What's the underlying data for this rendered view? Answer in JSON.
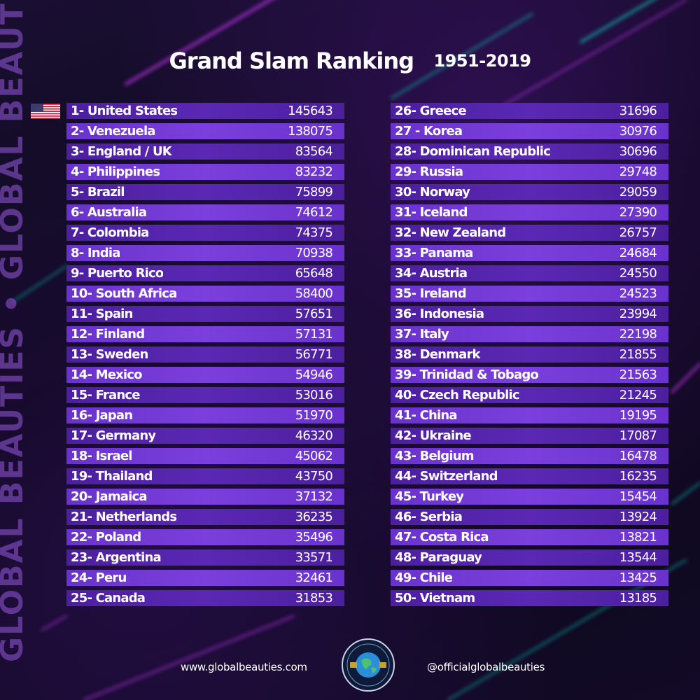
{
  "title": "Grand Slam Ranking",
  "years": "1951-2019",
  "side_text": "GLOBAL BEAUTIES • GLOBAL BEAUTIES",
  "footer": {
    "website": "www.globalbeauties.com",
    "instagram": "@officialglobalbeauties"
  },
  "logo_text": "GLOBAL BEAUTIES",
  "colors": {
    "row_dark": "#4c1f9e",
    "row_light": "#6a32cc",
    "background": "#0a0714",
    "neon_pink": "#d23cff",
    "neon_teal": "#19d9c8"
  },
  "flag_icon": "us-flag-icon",
  "rankings": [
    {
      "label": "1- United States",
      "score": "145643"
    },
    {
      "label": "2- Venezuela",
      "score": "138075"
    },
    {
      "label": "3- England / UK",
      "score": "83564"
    },
    {
      "label": "4- Philippines",
      "score": "83232"
    },
    {
      "label": "5- Brazil",
      "score": "75899"
    },
    {
      "label": "6- Australia",
      "score": "74612"
    },
    {
      "label": "7- Colombia",
      "score": "74375"
    },
    {
      "label": "8- India",
      "score": "70938"
    },
    {
      "label": "9- Puerto Rico",
      "score": "65648"
    },
    {
      "label": "10- South Africa",
      "score": "58400"
    },
    {
      "label": "11- Spain",
      "score": "57651"
    },
    {
      "label": "12- Finland",
      "score": "57131"
    },
    {
      "label": "13- Sweden",
      "score": "56771"
    },
    {
      "label": "14- Mexico",
      "score": "54946"
    },
    {
      "label": "15- France",
      "score": "53016"
    },
    {
      "label": "16- Japan",
      "score": "51970"
    },
    {
      "label": "17- Germany",
      "score": "46320"
    },
    {
      "label": "18- Israel",
      "score": "45062"
    },
    {
      "label": "19- Thailand",
      "score": "43750"
    },
    {
      "label": "20- Jamaica",
      "score": "37132"
    },
    {
      "label": "21- Netherlands",
      "score": "36235"
    },
    {
      "label": "22- Poland",
      "score": "35496"
    },
    {
      "label": "23- Argentina",
      "score": "33571"
    },
    {
      "label": "24- Peru",
      "score": "32461"
    },
    {
      "label": "25- Canada",
      "score": "31853"
    },
    {
      "label": "26- Greece",
      "score": "31696"
    },
    {
      "label": "27 - Korea",
      "score": "30976"
    },
    {
      "label": "28- Dominican Republic",
      "score": "30696"
    },
    {
      "label": "29- Russia",
      "score": "29748"
    },
    {
      "label": "30- Norway",
      "score": "29059"
    },
    {
      "label": "31- Iceland",
      "score": "27390"
    },
    {
      "label": "32- New Zealand",
      "score": "26757"
    },
    {
      "label": "33- Panama",
      "score": "24684"
    },
    {
      "label": "34- Austria",
      "score": "24550"
    },
    {
      "label": "35- Ireland",
      "score": "24523"
    },
    {
      "label": "36- Indonesia",
      "score": "23994"
    },
    {
      "label": "37- Italy",
      "score": "22198"
    },
    {
      "label": "38- Denmark",
      "score": "21855"
    },
    {
      "label": "39- Trinidad & Tobago",
      "score": "21563"
    },
    {
      "label": "40- Czech Republic",
      "score": "21245"
    },
    {
      "label": "41- China",
      "score": "19195"
    },
    {
      "label": "42- Ukraine",
      "score": "17087"
    },
    {
      "label": "43- Belgium",
      "score": "16478"
    },
    {
      "label": "44- Switzerland",
      "score": "16235"
    },
    {
      "label": "45- Turkey",
      "score": "15454"
    },
    {
      "label": "46- Serbia",
      "score": "13924"
    },
    {
      "label": "47- Costa Rica",
      "score": "13821"
    },
    {
      "label": "48- Paraguay",
      "score": "13544"
    },
    {
      "label": "49- Chile",
      "score": "13425"
    },
    {
      "label": "50- Vietnam",
      "score": "13185"
    }
  ]
}
